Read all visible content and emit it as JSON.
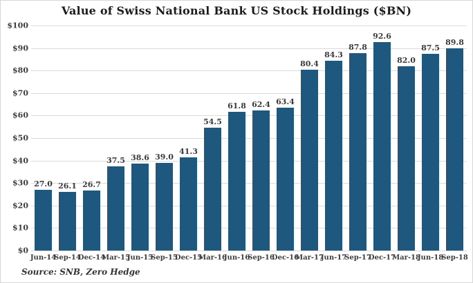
{
  "chart_data": {
    "type": "bar",
    "title": "Value of Swiss National Bank US Stock Holdings ($BN)",
    "categories": [
      "Jun-14",
      "Sep-14",
      "Dec-14",
      "Mar-15",
      "Jun-15",
      "Sep-15",
      "Dec-15",
      "Mar-16",
      "Jun-16",
      "Sep-16",
      "Dec-16",
      "Mar-17",
      "Jun-17",
      "Sep-17",
      "Dec-17",
      "Mar-18",
      "Jun-18",
      "Sep-18"
    ],
    "values": [
      27.0,
      26.1,
      26.7,
      37.5,
      38.6,
      39.0,
      41.3,
      54.5,
      61.8,
      62.4,
      63.4,
      80.4,
      84.3,
      87.8,
      92.6,
      82.0,
      87.5,
      89.8
    ],
    "value_label_decimals": 1,
    "xlabel": "",
    "ylabel": "",
    "ylim": [
      0,
      100
    ],
    "ytick_step": 10,
    "ytick_prefix": "$",
    "grid": true,
    "legend": "none",
    "bar_color": "#1f587e",
    "gridline_color": "#dadada"
  },
  "source": "Source: SNB, Zero Hedge"
}
